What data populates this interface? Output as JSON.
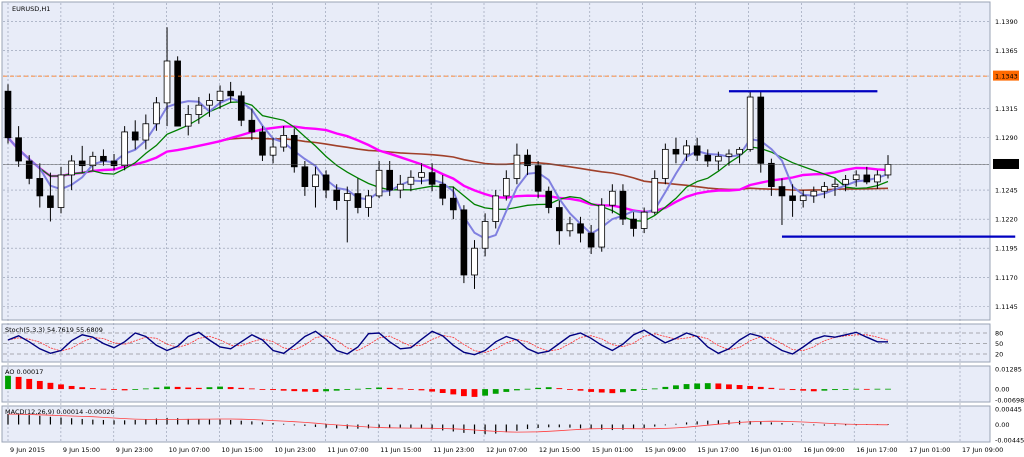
{
  "window": {
    "symbol_label": "EURUSD,H1"
  },
  "colors": {
    "background": "#e8ecf8",
    "candle": "#000000",
    "ma_fast": "#8080e0",
    "ma_mid": "#008000",
    "ma_magenta": "#ff00ff",
    "ma_slow": "#a0402a",
    "level_line": "#0000c0",
    "price_marker": "#ff6a00",
    "stoch_main": "#000080",
    "stoch_signal": "#ff3030",
    "ao_up": "#00a000",
    "ao_down": "#ff0000",
    "macd_hist": "#000000",
    "macd_signal": "#ff4040"
  },
  "chart_data": [
    {
      "type": "candlestick",
      "title": "EURUSD,H1",
      "ylim": [
        1.1135,
        1.1405
      ],
      "price_ticks": [
        "1.1390",
        "1.1365",
        "1.1343",
        "1.1315",
        "1.1290",
        "1.1267",
        "1.1245",
        "1.1220",
        "1.1195",
        "1.1170",
        "1.1145"
      ],
      "marked_prices": {
        "dashed_level": "1.1343",
        "current": "1.1267"
      },
      "time_ticks": [
        "9 Jun 2015",
        "9 Jun 15:00",
        "9 Jun 23:00",
        "10 Jun 07:00",
        "10 Jun 15:00",
        "10 Jun 23:00",
        "11 Jun 07:00",
        "11 Jun 15:00",
        "11 Jun 23:00",
        "12 Jun 07:00",
        "12 Jun 15:00",
        "15 Jun 01:00",
        "15 Jun 09:00",
        "15 Jun 17:00",
        "16 Jun 01:00",
        "16 Jun 09:00",
        "16 Jun 17:00",
        "17 Jun 01:00",
        "17 Jun 09:00"
      ],
      "candles": [
        [
          1.133,
          1.1336,
          1.1285,
          1.129
        ],
        [
          1.129,
          1.13,
          1.1265,
          1.127
        ],
        [
          1.127,
          1.1275,
          1.125,
          1.1255
        ],
        [
          1.1255,
          1.1268,
          1.123,
          1.124
        ],
        [
          1.124,
          1.126,
          1.1218,
          1.123
        ],
        [
          1.123,
          1.1265,
          1.1225,
          1.1258
        ],
        [
          1.1258,
          1.1275,
          1.1245,
          1.127
        ],
        [
          1.127,
          1.1283,
          1.126,
          1.1266
        ],
        [
          1.1266,
          1.1278,
          1.1262,
          1.1274
        ],
        [
          1.1274,
          1.128,
          1.1266,
          1.127
        ],
        [
          1.127,
          1.1276,
          1.1262,
          1.1266
        ],
        [
          1.1266,
          1.13,
          1.1262,
          1.1295
        ],
        [
          1.1295,
          1.1305,
          1.128,
          1.1288
        ],
        [
          1.1288,
          1.131,
          1.128,
          1.1302
        ],
        [
          1.1302,
          1.1325,
          1.1296,
          1.132
        ],
        [
          1.132,
          1.1385,
          1.13,
          1.1356
        ],
        [
          1.1356,
          1.136,
          1.13,
          1.13
        ],
        [
          1.13,
          1.1318,
          1.1292,
          1.131
        ],
        [
          1.131,
          1.1325,
          1.1302,
          1.1318
        ],
        [
          1.1318,
          1.1328,
          1.1308,
          1.1322
        ],
        [
          1.1322,
          1.1335,
          1.1315,
          1.133
        ],
        [
          1.133,
          1.1338,
          1.132,
          1.1326
        ],
        [
          1.1326,
          1.133,
          1.13,
          1.1305
        ],
        [
          1.1305,
          1.1315,
          1.1288,
          1.1295
        ],
        [
          1.1295,
          1.13,
          1.127,
          1.1275
        ],
        [
          1.1275,
          1.129,
          1.1268,
          1.1282
        ],
        [
          1.1282,
          1.13,
          1.1278,
          1.1292
        ],
        [
          1.1292,
          1.1298,
          1.126,
          1.1265
        ],
        [
          1.1265,
          1.127,
          1.124,
          1.1248
        ],
        [
          1.1248,
          1.1265,
          1.123,
          1.1258
        ],
        [
          1.1258,
          1.1262,
          1.1238,
          1.1245
        ],
        [
          1.1245,
          1.125,
          1.1228,
          1.1236
        ],
        [
          1.1236,
          1.1248,
          1.12,
          1.1242
        ],
        [
          1.1242,
          1.1255,
          1.1225,
          1.123
        ],
        [
          1.123,
          1.1245,
          1.1222,
          1.124
        ],
        [
          1.124,
          1.127,
          1.1238,
          1.1262
        ],
        [
          1.1262,
          1.127,
          1.124,
          1.1245
        ],
        [
          1.1245,
          1.1258,
          1.1238,
          1.125
        ],
        [
          1.125,
          1.1262,
          1.1244,
          1.1256
        ],
        [
          1.1256,
          1.1268,
          1.125,
          1.126
        ],
        [
          1.126,
          1.1268,
          1.1244,
          1.125
        ],
        [
          1.125,
          1.1258,
          1.1232,
          1.1238
        ],
        [
          1.1238,
          1.1248,
          1.122,
          1.1228
        ],
        [
          1.1228,
          1.1232,
          1.1165,
          1.1172
        ],
        [
          1.1172,
          1.1202,
          1.116,
          1.1195
        ],
        [
          1.1195,
          1.1225,
          1.1188,
          1.1218
        ],
        [
          1.1218,
          1.1245,
          1.1212,
          1.124
        ],
        [
          1.124,
          1.1262,
          1.1236,
          1.1255
        ],
        [
          1.1255,
          1.1285,
          1.125,
          1.1275
        ],
        [
          1.1275,
          1.128,
          1.1258,
          1.1266
        ],
        [
          1.1266,
          1.127,
          1.1238,
          1.1244
        ],
        [
          1.1244,
          1.1248,
          1.1225,
          1.123
        ],
        [
          1.123,
          1.1236,
          1.1198,
          1.121
        ],
        [
          1.121,
          1.1222,
          1.1205,
          1.1216
        ],
        [
          1.1216,
          1.1222,
          1.12,
          1.1208
        ],
        [
          1.1208,
          1.1215,
          1.119,
          1.1196
        ],
        [
          1.1196,
          1.1238,
          1.1192,
          1.1232
        ],
        [
          1.1232,
          1.125,
          1.1225,
          1.1244
        ],
        [
          1.1244,
          1.125,
          1.1215,
          1.122
        ],
        [
          1.122,
          1.1226,
          1.1205,
          1.1212
        ],
        [
          1.1212,
          1.123,
          1.1208,
          1.1226
        ],
        [
          1.1226,
          1.1262,
          1.1224,
          1.1255
        ],
        [
          1.1255,
          1.1285,
          1.125,
          1.128
        ],
        [
          1.128,
          1.129,
          1.1268,
          1.1276
        ],
        [
          1.1276,
          1.1288,
          1.127,
          1.1283
        ],
        [
          1.1283,
          1.129,
          1.127,
          1.1275
        ],
        [
          1.1275,
          1.128,
          1.1265,
          1.127
        ],
        [
          1.127,
          1.1278,
          1.1262,
          1.1274
        ],
        [
          1.1274,
          1.128,
          1.1266,
          1.1276
        ],
        [
          1.1276,
          1.1282,
          1.1268,
          1.128
        ],
        [
          1.128,
          1.133,
          1.1278,
          1.1325
        ],
        [
          1.1325,
          1.133,
          1.126,
          1.1268
        ],
        [
          1.1268,
          1.1272,
          1.124,
          1.1248
        ],
        [
          1.1248,
          1.1255,
          1.1215,
          1.124
        ],
        [
          1.124,
          1.125,
          1.1222,
          1.1236
        ],
        [
          1.1236,
          1.1245,
          1.123,
          1.124
        ],
        [
          1.124,
          1.1248,
          1.1234,
          1.1244
        ],
        [
          1.1244,
          1.1252,
          1.1238,
          1.1248
        ],
        [
          1.1248,
          1.1255,
          1.124,
          1.125
        ],
        [
          1.125,
          1.1258,
          1.1244,
          1.1254
        ],
        [
          1.1254,
          1.1262,
          1.1248,
          1.1258
        ],
        [
          1.1258,
          1.1265,
          1.125,
          1.1252
        ],
        [
          1.1252,
          1.1262,
          1.1246,
          1.1258
        ],
        [
          1.1258,
          1.1275,
          1.1255,
          1.1267
        ]
      ],
      "horizontal_levels": [
        {
          "price": 1.133,
          "from_index": 68,
          "to_index": 82
        },
        {
          "price": 1.1205,
          "from_index": 73,
          "to_index": 95
        }
      ]
    },
    {
      "type": "line",
      "title": "Stoch(5,3,3) 54.7619 55.6809",
      "ylim": [
        0,
        100
      ],
      "tick_labels": [
        "80",
        "50",
        "20"
      ],
      "series": [
        {
          "name": "Stoch(5,3,3)",
          "values": [
            60,
            72,
            55,
            35,
            22,
            30,
            58,
            75,
            68,
            50,
            38,
            55,
            80,
            70,
            45,
            30,
            42,
            70,
            82,
            60,
            40,
            35,
            55,
            75,
            60,
            30,
            22,
            45,
            70,
            85,
            62,
            30,
            20,
            40,
            78,
            80,
            55,
            35,
            38,
            62,
            85,
            72,
            45,
            25,
            18,
            30,
            55,
            70,
            60,
            35,
            22,
            28,
            50,
            72,
            80,
            65,
            45,
            30,
            48,
            75,
            88,
            70,
            52,
            65,
            80,
            70,
            40,
            22,
            35,
            60,
            78,
            70,
            48,
            30,
            20,
            40,
            62,
            72,
            68,
            75,
            82,
            68,
            55,
            55
          ]
        }
      ]
    },
    {
      "type": "bar",
      "title": "AO 0.00017",
      "ylim": [
        -0.00698,
        0.01285
      ],
      "tick_labels": [
        "0.01285",
        "0.00",
        "-0.00698"
      ],
      "values": [
        0.0085,
        0.0078,
        0.0065,
        0.0052,
        0.004,
        0.003,
        0.002,
        0.0012,
        0.0006,
        0.0002,
        -0.0004,
        -0.0008,
        -0.0003,
        0.0004,
        0.001,
        0.0016,
        0.0014,
        0.001,
        0.0008,
        0.0012,
        0.0016,
        0.0013,
        0.0008,
        0.0004,
        -0.0002,
        -0.0006,
        -0.001,
        -0.0013,
        -0.0016,
        -0.0018,
        -0.0014,
        -0.001,
        -0.0004,
        0.0002,
        0.0006,
        0.001,
        0.0008,
        0.0004,
        0.0,
        -0.0008,
        -0.0016,
        -0.0025,
        -0.0034,
        -0.0045,
        -0.005,
        -0.0042,
        -0.003,
        -0.0018,
        -0.0008,
        0.0002,
        0.0008,
        0.0012,
        0.0006,
        -0.0002,
        -0.001,
        -0.0018,
        -0.0022,
        -0.0026,
        -0.002,
        -0.0012,
        -0.0004,
        0.0004,
        0.0014,
        0.0024,
        0.0032,
        0.0036,
        0.0038,
        0.0036,
        0.003,
        0.0026,
        0.002,
        0.0014,
        0.0008,
        0.0002,
        -0.0006,
        -0.001,
        -0.0014,
        -0.001,
        -0.0006,
        -0.0002,
        0.0002,
        0.0001,
        0.0002,
        0.0002
      ]
    },
    {
      "type": "bar",
      "title": "MACD(12,26,9) 0.00014 -0.00026",
      "ylim": [
        -0.00445,
        0.00445
      ],
      "tick_labels": [
        "0.00445",
        "0.00",
        "-0.00445"
      ],
      "values": [
        0.003,
        0.0029,
        0.0027,
        0.0025,
        0.0022,
        0.002,
        0.0018,
        0.0016,
        0.0014,
        0.0013,
        0.0012,
        0.0012,
        0.0013,
        0.0015,
        0.0017,
        0.0019,
        0.0018,
        0.0016,
        0.0015,
        0.0014,
        0.0014,
        0.0013,
        0.0011,
        0.0009,
        0.0006,
        0.0004,
        0.0002,
        -0.0001,
        -0.0004,
        -0.0007,
        -0.0009,
        -0.0011,
        -0.0012,
        -0.0012,
        -0.0011,
        -0.001,
        -0.0009,
        -0.0009,
        -0.001,
        -0.0012,
        -0.0014,
        -0.0017,
        -0.002,
        -0.0024,
        -0.0027,
        -0.0028,
        -0.0026,
        -0.0022,
        -0.0018,
        -0.0013,
        -0.001,
        -0.0008,
        -0.0008,
        -0.0009,
        -0.0011,
        -0.0013,
        -0.0015,
        -0.0016,
        -0.0015,
        -0.0013,
        -0.001,
        -0.0006,
        -0.0002,
        0.0002,
        0.0006,
        0.0009,
        0.0011,
        0.0012,
        0.0012,
        0.0011,
        0.001,
        0.0008,
        0.0006,
        0.0004,
        0.0002,
        0.0,
        -0.0002,
        -0.0003,
        -0.0003,
        -0.0002,
        0.0,
        0.0001,
        0.0001,
        0.0001
      ]
    }
  ]
}
